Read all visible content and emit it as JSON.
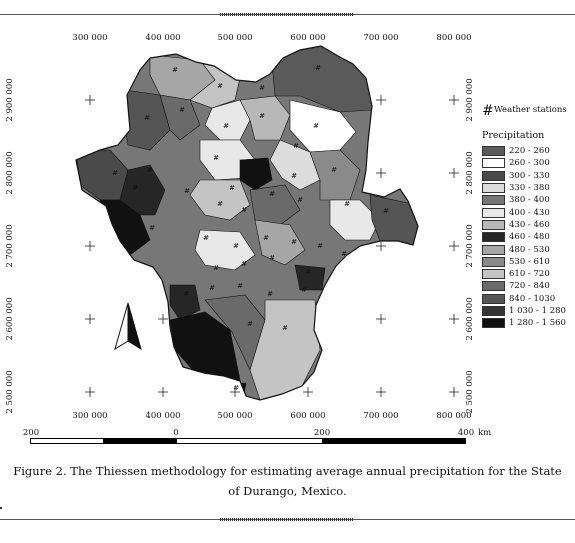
{
  "map": {
    "x_ticks": [
      "300 000",
      "400 000",
      "500 000",
      "600 000",
      "700 000",
      "800 000"
    ],
    "y_ticks": [
      "2 900 000",
      "2 800 000",
      "2 700 000",
      "2 600 000",
      "2 500 000"
    ],
    "station_symbol": "#",
    "north_arrow_icon": "north-arrow"
  },
  "legend": {
    "stations_label": "Weather stations",
    "precip_title": "Precipitation",
    "classes": [
      {
        "label": "220 - 260",
        "color": "#5a5a5a"
      },
      {
        "label": "260 - 300",
        "color": "#ffffff"
      },
      {
        "label": "300 - 330",
        "color": "#4a4a4a"
      },
      {
        "label": "330 - 380",
        "color": "#dcdcdc"
      },
      {
        "label": "380 - 400",
        "color": "#767676"
      },
      {
        "label": "400 - 430",
        "color": "#e8e8e8"
      },
      {
        "label": "430 - 460",
        "color": "#b8b8b8"
      },
      {
        "label": "460 - 480",
        "color": "#262626"
      },
      {
        "label": "480 - 530",
        "color": "#a6a6a6"
      },
      {
        "label": "530 - 610",
        "color": "#8a8a8a"
      },
      {
        "label": "610 - 720",
        "color": "#c4c4c4"
      },
      {
        "label": "720 - 840",
        "color": "#6a6a6a"
      },
      {
        "label": "840 - 1030",
        "color": "#555555"
      },
      {
        "label": "1 030 - 1 280",
        "color": "#353535"
      },
      {
        "label": "1 280 - 1 560",
        "color": "#111111"
      }
    ]
  },
  "scale": {
    "labels": [
      "200",
      "0",
      "200",
      "400"
    ],
    "unit": "km"
  },
  "caption": "Figure 2. The Thiessen methodology for estimating average annual precipitation for the State of Durango, Mexico."
}
